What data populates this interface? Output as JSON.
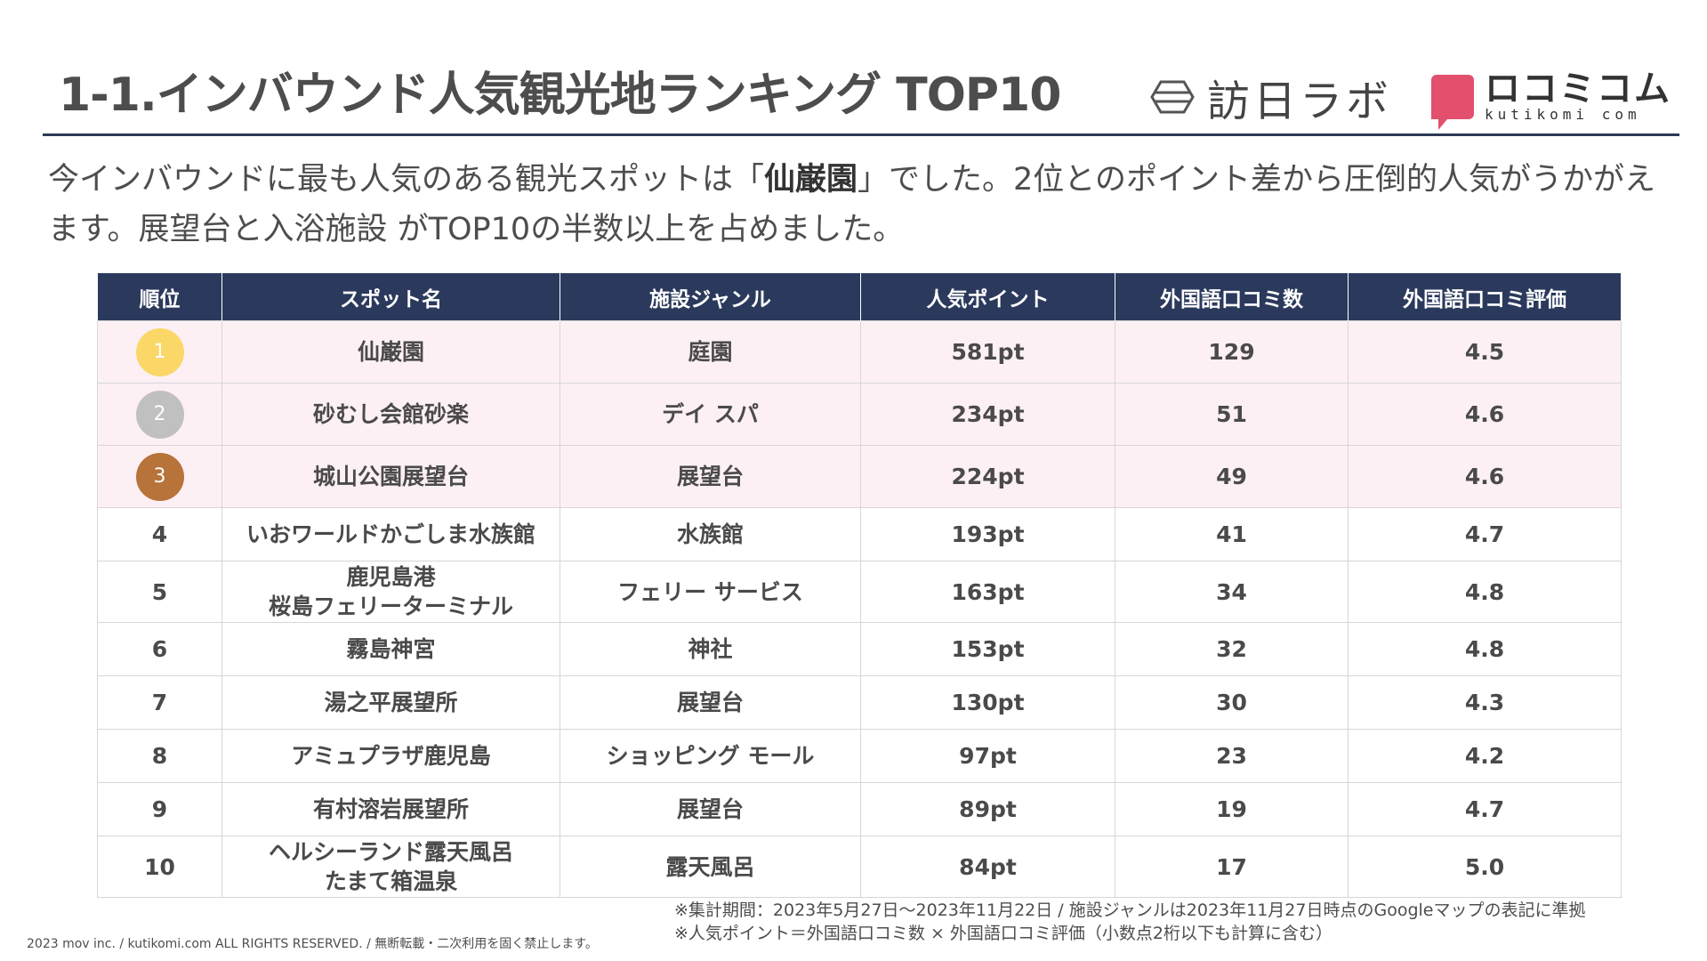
{
  "header": {
    "title": "1-1.インバウンド人気観光地ランキング TOP10",
    "logo1_text": "訪日ラボ",
    "logo2_main": "ロコミコム",
    "logo2_sub": "kutikomi com"
  },
  "description": {
    "part1": "今インバウンドに最も人気のある観光スポットは「",
    "highlight": "仙巌園",
    "part2": "」でした。2位とのポイント差から圧倒的人気がうかがえます。展望台と入浴施設 がTOP10の半数以上を占めました。"
  },
  "table": {
    "headers": [
      "順位",
      "スポット名",
      "施設ジャンル",
      "人気ポイント",
      "外国語口コミ数",
      "外国語口コミ評価"
    ],
    "rows": [
      {
        "rank": "1",
        "name": "仙巌園",
        "genre": "庭園",
        "points": "581pt",
        "count": "129",
        "rating": "4.5"
      },
      {
        "rank": "2",
        "name": "砂むし会館砂楽",
        "genre": "デイ スパ",
        "points": "234pt",
        "count": "51",
        "rating": "4.6"
      },
      {
        "rank": "3",
        "name": "城山公園展望台",
        "genre": "展望台",
        "points": "224pt",
        "count": "49",
        "rating": "4.6"
      },
      {
        "rank": "4",
        "name": "いおワールドかごしま水族館",
        "genre": "水族館",
        "points": "193pt",
        "count": "41",
        "rating": "4.7"
      },
      {
        "rank": "5",
        "name": "鹿児島港",
        "name2": "桜島フェリーターミナル",
        "genre": "フェリー サービス",
        "points": "163pt",
        "count": "34",
        "rating": "4.8"
      },
      {
        "rank": "6",
        "name": "霧島神宮",
        "genre": "神社",
        "points": "153pt",
        "count": "32",
        "rating": "4.8"
      },
      {
        "rank": "7",
        "name": "湯之平展望所",
        "genre": "展望台",
        "points": "130pt",
        "count": "30",
        "rating": "4.3"
      },
      {
        "rank": "8",
        "name": "アミュプラザ鹿児島",
        "genre": "ショッピング モール",
        "points": "97pt",
        "count": "23",
        "rating": "4.2"
      },
      {
        "rank": "9",
        "name": "有村溶岩展望所",
        "genre": "展望台",
        "points": "89pt",
        "count": "19",
        "rating": "4.7"
      },
      {
        "rank": "10",
        "name": "ヘルシーランド露天風呂",
        "name2": "たまて箱温泉",
        "genre": "露天風呂",
        "points": "84pt",
        "count": "17",
        "rating": "5.0"
      }
    ]
  },
  "notes": {
    "line1": "※集計期間：2023年5月27日～2023年11月22日 / 施設ジャンルは2023年11月27日時点のGoogleマップの表記に準拠",
    "line2": "※人気ポイント＝外国語口コミ数 × 外国語口コミ評価（小数点2桁以下も計算に含む）"
  },
  "footer": {
    "copyright": "2023 mov inc. / kutikomi.com ALL RIGHTS RESERVED. / 無断転載・二次利用を固く禁止します。"
  },
  "colors": {
    "header_bg": "#2b3a5c",
    "top3_row_bg": "#fdf0f4",
    "gold": "#fbd768",
    "silver": "#c0c0c0",
    "bronze": "#b8733a",
    "logo_pink": "#e2506e"
  }
}
